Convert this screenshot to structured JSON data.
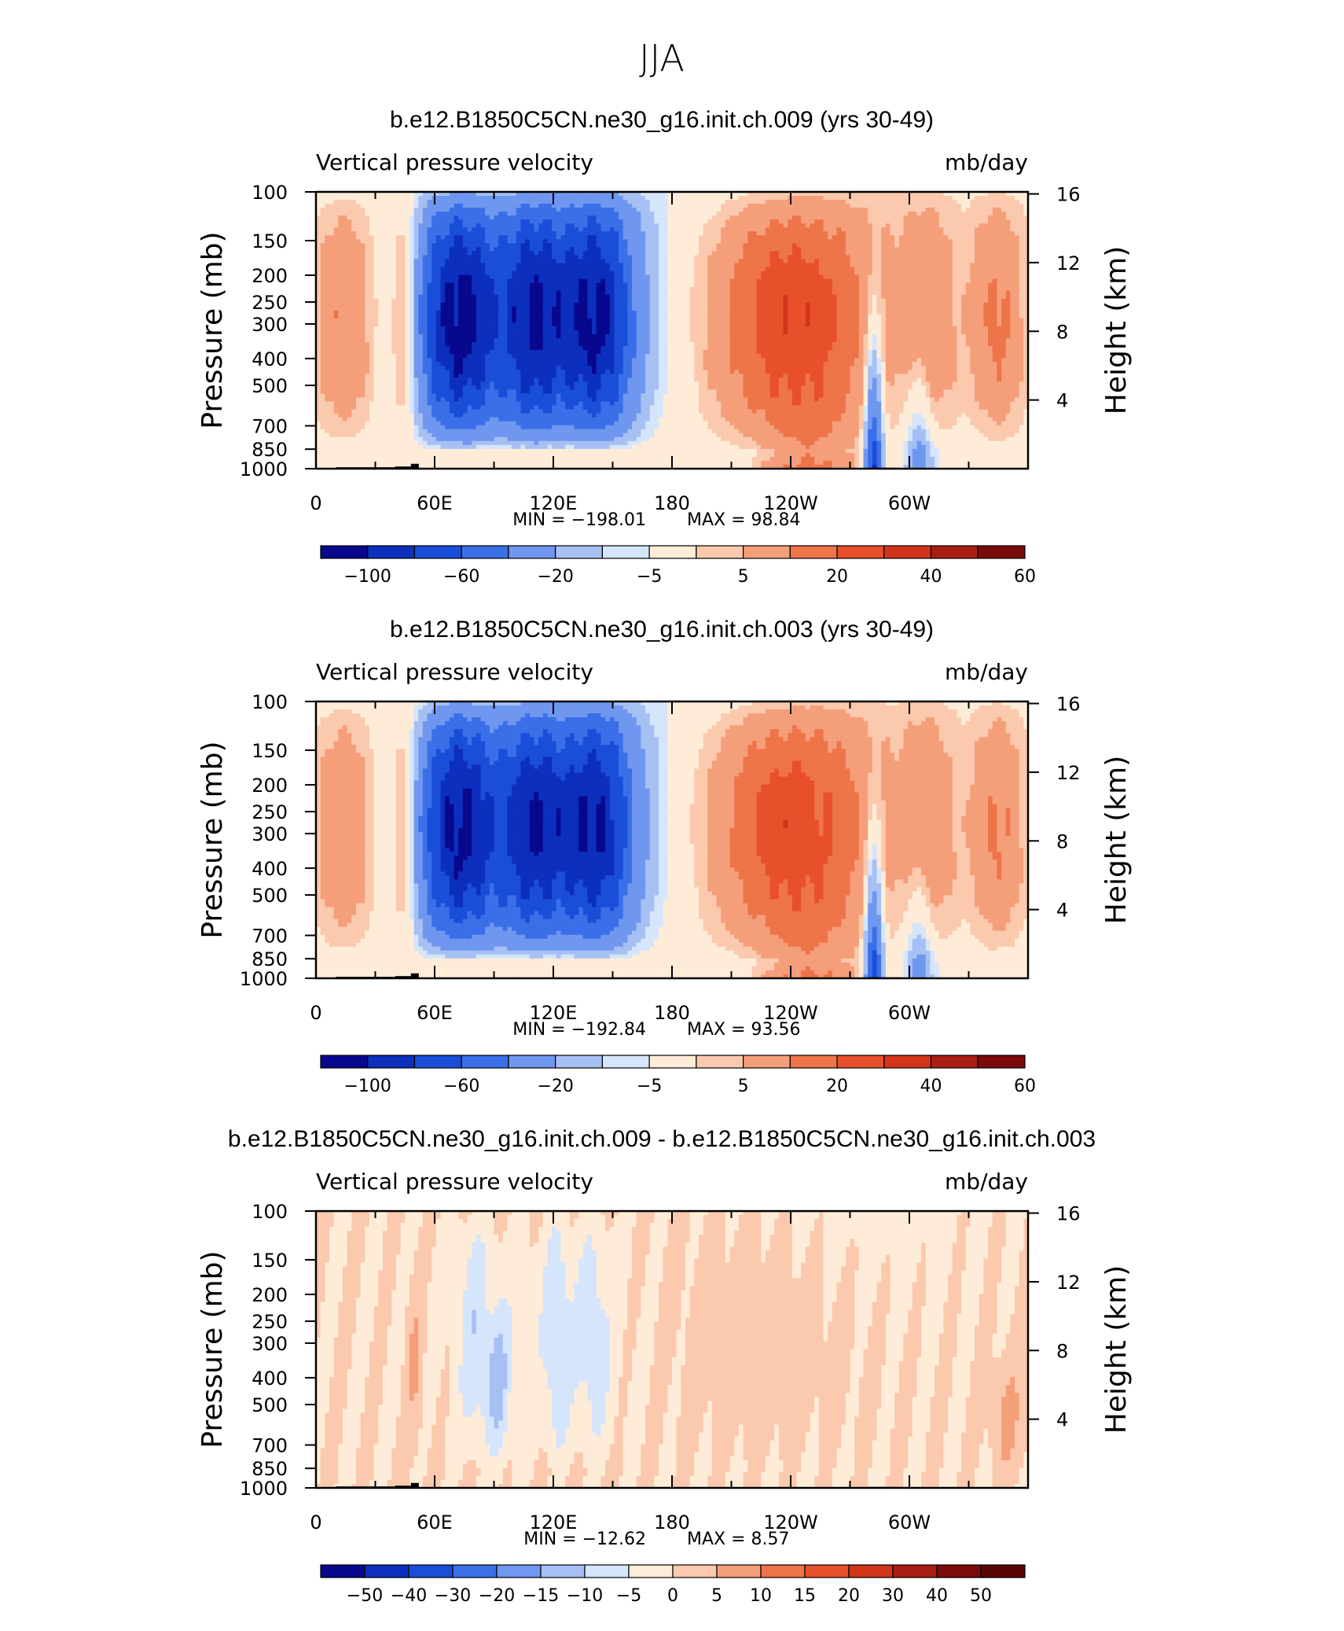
{
  "figure_title": "JJA",
  "panels": [
    {
      "title": "b.e12.B1850C5CN.ne30_g16.init.ch.009 (yrs 30-49)",
      "left_label": "Vertical pressure velocity",
      "right_label": "mb/day",
      "ylabel_left": "Pressure  (mb)",
      "ylabel_right": "Height  (km)",
      "min_label": "MIN  =  −198.01",
      "max_label": "MAX  =    98.84",
      "colorbar_labels": [
        "−100",
        "−60",
        "−20",
        "−5",
        "5",
        "20",
        "40",
        "60"
      ]
    },
    {
      "title": "b.e12.B1850C5CN.ne30_g16.init.ch.003 (yrs 30-49)",
      "left_label": "Vertical pressure velocity",
      "right_label": "mb/day",
      "ylabel_left": "Pressure  (mb)",
      "ylabel_right": "Height  (km)",
      "min_label": "MIN  =  −192.84",
      "max_label": "MAX  =    93.56",
      "colorbar_labels": [
        "−100",
        "−60",
        "−20",
        "−5",
        "5",
        "20",
        "40",
        "60"
      ]
    },
    {
      "title": "b.e12.B1850C5CN.ne30_g16.init.ch.009 - b.e12.B1850C5CN.ne30_g16.init.ch.003",
      "left_label": "Vertical pressure velocity",
      "right_label": "mb/day",
      "ylabel_left": "Pressure  (mb)",
      "ylabel_right": "Height  (km)",
      "min_label": "MIN  =  −12.62",
      "max_label": "MAX  =     8.57",
      "colorbar_labels": [
        "−50",
        "−40",
        "−30",
        "−20",
        "−15",
        "−10",
        "−5",
        "0",
        "5",
        "10",
        "15",
        "20",
        "30",
        "40",
        "50"
      ]
    }
  ],
  "chart_data": {
    "type": "heatmap",
    "x_tick_labels": [
      "0",
      "60E",
      "120E",
      "180",
      "120W",
      "60W"
    ],
    "pressure_tick_labels": [
      "100",
      "150",
      "200",
      "250",
      "300",
      "400",
      "500",
      "700",
      "850",
      "1000"
    ],
    "height_tick_labels": [
      "16",
      "12",
      "8",
      "4"
    ],
    "x_range_deg_east": [
      0,
      360
    ],
    "pressure_range_mb": [
      100,
      1000
    ],
    "y_scale": "log",
    "colors_abs": [
      "#08088e",
      "#0d2fbd",
      "#1a4ed8",
      "#3a6fe8",
      "#6f97ef",
      "#a7c0f4",
      "#d5e5fb",
      "#feecd8",
      "#fbc9ad",
      "#f59e7a",
      "#ee7449",
      "#e8502b",
      "#d2351a",
      "#a91d13",
      "#7b0a0a"
    ],
    "colors_diff": [
      "#08088e",
      "#0d2fbd",
      "#1a4ed8",
      "#3a6fe8",
      "#6f97ef",
      "#a7c0f4",
      "#d5e5fb",
      "#feecd8",
      "#fbc9ad",
      "#f59e7a",
      "#ee7449",
      "#e8502b",
      "#d2351a",
      "#a91d13",
      "#7b0a0a",
      "#5a0505"
    ]
  }
}
